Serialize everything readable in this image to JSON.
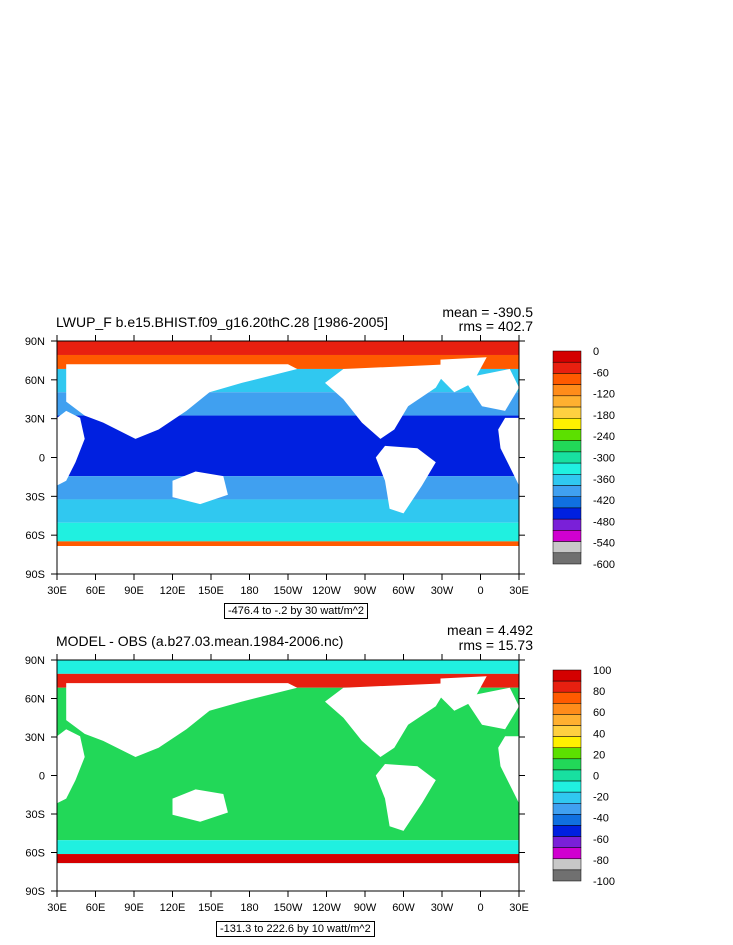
{
  "chart_data": [
    {
      "type": "heatmap",
      "title": "LWUP_F b.e15.BHIST.f09_g16.20thC.28 [1986-2005]",
      "mean_label": "mean = -390.5",
      "rms_label": "rms = 402.7",
      "x_ticks": [
        "30E",
        "60E",
        "90E",
        "120E",
        "150E",
        "180",
        "150W",
        "120W",
        "90W",
        "60W",
        "30W",
        "0",
        "30E"
      ],
      "y_ticks": [
        "90N",
        "60N",
        "30N",
        "0",
        "30S",
        "60S",
        "90S"
      ],
      "colorbar_levels": [
        "0",
        "-60",
        "-120",
        "-180",
        "-240",
        "-300",
        "-360",
        "-420",
        "-480",
        "-540",
        "-600"
      ],
      "colorbar_colors": [
        "#d40000",
        "#e82010",
        "#ff5a00",
        "#ff8c1a",
        "#ffb030",
        "#ffd040",
        "#fff000",
        "#5ce000",
        "#22d858",
        "#18e0a0",
        "#20f0e0",
        "#30c8f0",
        "#40a0f0",
        "#1070e0",
        "#0020e0",
        "#7a20d8",
        "#d000d0",
        "#c8c8c8",
        "#707070"
      ],
      "range_label": "-476.4 to -.2 by 30 watt/m^2"
    },
    {
      "type": "heatmap",
      "title": "MODEL - OBS (a.b27.03.mean.1984-2006.nc)",
      "mean_label": "mean = 4.492",
      "rms_label": "rms = 15.73",
      "x_ticks": [
        "30E",
        "60E",
        "90E",
        "120E",
        "150E",
        "180",
        "150W",
        "120W",
        "90W",
        "60W",
        "30W",
        "0",
        "30E"
      ],
      "y_ticks": [
        "90N",
        "60N",
        "30N",
        "0",
        "30S",
        "60S",
        "90S"
      ],
      "colorbar_levels": [
        "100",
        "80",
        "60",
        "40",
        "20",
        "0",
        "-20",
        "-40",
        "-60",
        "-80",
        "-100"
      ],
      "colorbar_colors": [
        "#d40000",
        "#e82010",
        "#ff5a00",
        "#ff8c1a",
        "#ffb030",
        "#ffd040",
        "#fff000",
        "#5ce000",
        "#22d858",
        "#18e0a0",
        "#20f0e0",
        "#30c8f0",
        "#40a0f0",
        "#1070e0",
        "#0020e0",
        "#7a20d8",
        "#d000d0",
        "#c8c8c8",
        "#707070"
      ],
      "range_label": "-131.3 to 222.6 by 10 watt/m^2"
    }
  ]
}
